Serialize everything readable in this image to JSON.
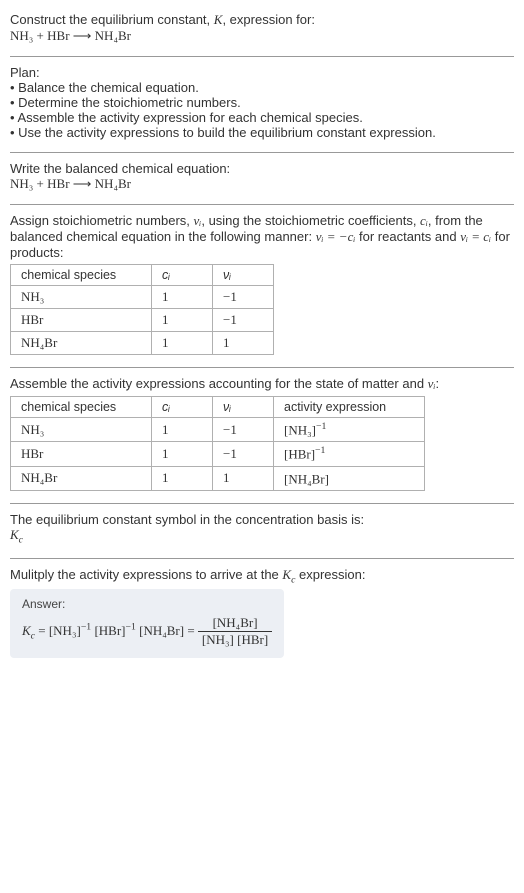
{
  "intro": {
    "line1": "Construct the equilibrium constant, ",
    "Ksym": "K",
    "line1b": ", expression for:",
    "equation": "NH₃ + HBr ⟶ NH₄Br"
  },
  "plan": {
    "heading": "Plan:",
    "items": [
      "• Balance the chemical equation.",
      "• Determine the stoichiometric numbers.",
      "• Assemble the activity expression for each chemical species.",
      "• Use the activity expressions to build the equilibrium constant expression."
    ]
  },
  "balanced": {
    "heading": "Write the balanced chemical equation:",
    "equation": "NH₃ + HBr ⟶ NH₄Br"
  },
  "assign": {
    "text_a": "Assign stoichiometric numbers, ",
    "nu": "νᵢ",
    "text_b": ", using the stoichiometric coefficients, ",
    "ci": "cᵢ",
    "text_c": ", from the balanced chemical equation in the following manner: ",
    "rel1": "νᵢ = −cᵢ",
    "text_d": " for reactants and ",
    "rel2": "νᵢ = cᵢ",
    "text_e": " for products:",
    "table": {
      "headers": [
        "chemical species",
        "cᵢ",
        "νᵢ"
      ],
      "rows": [
        [
          "NH₃",
          "1",
          "−1"
        ],
        [
          "HBr",
          "1",
          "−1"
        ],
        [
          "NH₄Br",
          "1",
          "1"
        ]
      ],
      "col_widths": [
        "120px",
        "40px",
        "40px"
      ]
    }
  },
  "activity": {
    "heading_a": "Assemble the activity expressions accounting for the state of matter and ",
    "nu": "νᵢ",
    "heading_b": ":",
    "table": {
      "headers": [
        "chemical species",
        "cᵢ",
        "νᵢ",
        "activity expression"
      ],
      "rows": [
        {
          "species": "NH₃",
          "c": "1",
          "nu": "−1",
          "expr_base": "[NH₃]",
          "expr_exp": "−1"
        },
        {
          "species": "HBr",
          "c": "1",
          "nu": "−1",
          "expr_base": "[HBr]",
          "expr_exp": "−1"
        },
        {
          "species": "NH₄Br",
          "c": "1",
          "nu": "1",
          "expr_base": "[NH₄Br]",
          "expr_exp": ""
        }
      ],
      "col_widths": [
        "120px",
        "40px",
        "40px",
        "130px"
      ]
    }
  },
  "kc_symbol": {
    "line1": "The equilibrium constant symbol in the concentration basis is:",
    "sym": "K",
    "sub": "c"
  },
  "final": {
    "heading_a": "Mulitply the activity expressions to arrive at the ",
    "Kc": "K",
    "Kc_sub": "c",
    "heading_b": " expression:",
    "answer_label": "Answer:",
    "lhs": "Kc",
    "factors": [
      {
        "base": "[NH₃]",
        "exp": "−1"
      },
      {
        "base": "[HBr]",
        "exp": "−1"
      },
      {
        "base": "[NH₄Br]",
        "exp": ""
      }
    ],
    "frac_num": "[NH₄Br]",
    "frac_den": "[NH₃] [HBr]"
  },
  "colors": {
    "rule": "#999999",
    "table_border": "#b0b0b0",
    "answer_bg": "#eceff4",
    "text": "#333333"
  }
}
